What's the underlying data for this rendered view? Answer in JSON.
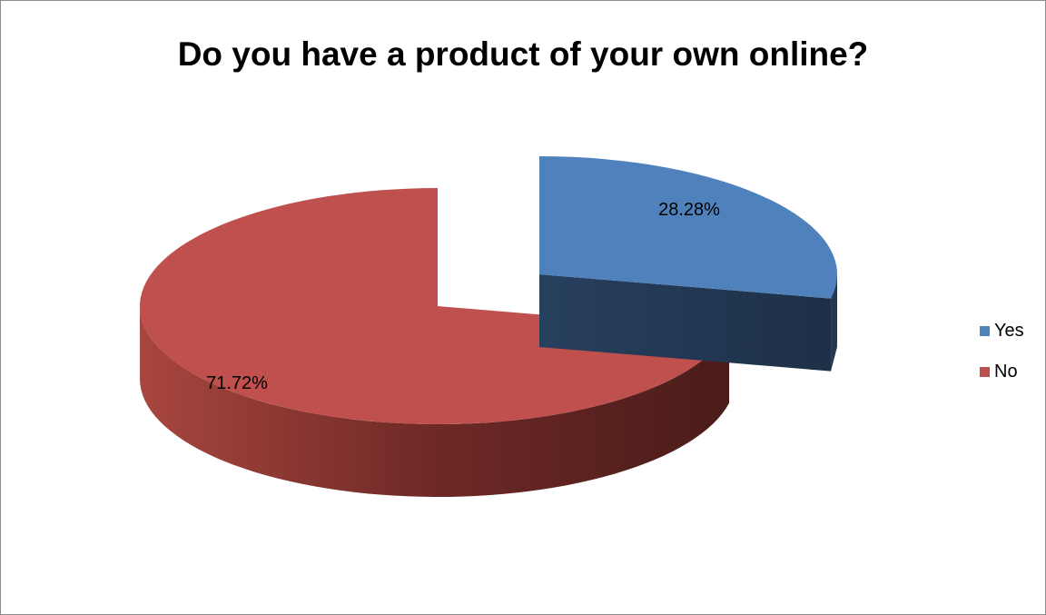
{
  "chart_data": {
    "type": "pie",
    "title": "Do you have a product of your own online?",
    "categories": [
      "Yes",
      "No"
    ],
    "values": [
      28.28,
      71.72
    ],
    "data_labels": [
      "28.28%",
      "71.72%"
    ],
    "legend_position": "right",
    "exploded": "Yes",
    "three_d": true,
    "series": [
      {
        "name": "Yes",
        "value": 28.28,
        "label": "28.28%",
        "color": "#4f81bd",
        "side_color": "#243852"
      },
      {
        "name": "No",
        "value": 71.72,
        "label": "71.72%",
        "color": "#c0504d",
        "side_color": "#6e2523"
      }
    ]
  }
}
